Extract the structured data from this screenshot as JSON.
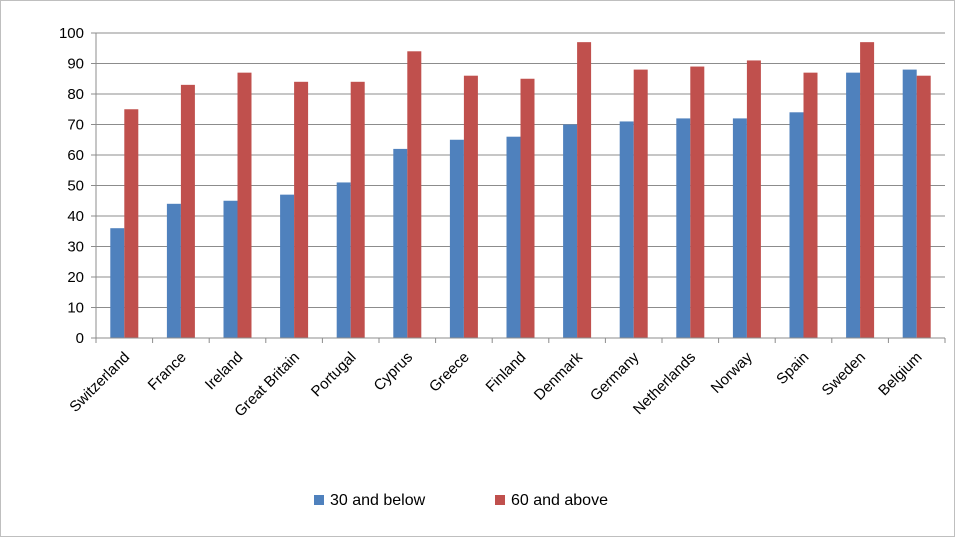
{
  "chart_data": {
    "type": "bar",
    "categories": [
      "Switzerland",
      "France",
      "Ireland",
      "Great Britain",
      "Portugal",
      "Cyprus",
      "Greece",
      "Finland",
      "Denmark",
      "Germany",
      "Netherlands",
      "Norway",
      "Spain",
      "Sweden",
      "Belgium"
    ],
    "series": [
      {
        "name": "30 and below",
        "color": "#4f81bd",
        "values": [
          36,
          44,
          45,
          47,
          51,
          62,
          65,
          66,
          70,
          71,
          72,
          72,
          74,
          87,
          88
        ]
      },
      {
        "name": "60 and above",
        "color": "#c0504d",
        "values": [
          75,
          83,
          87,
          84,
          84,
          94,
          86,
          85,
          97,
          88,
          89,
          91,
          87,
          97,
          86
        ]
      }
    ],
    "title": "",
    "xlabel": "",
    "ylabel": "",
    "ylim": [
      0,
      100
    ],
    "yticks": [
      0,
      10,
      20,
      30,
      40,
      50,
      60,
      70,
      80,
      90,
      100
    ],
    "grid": true,
    "legend_position": "bottom"
  }
}
